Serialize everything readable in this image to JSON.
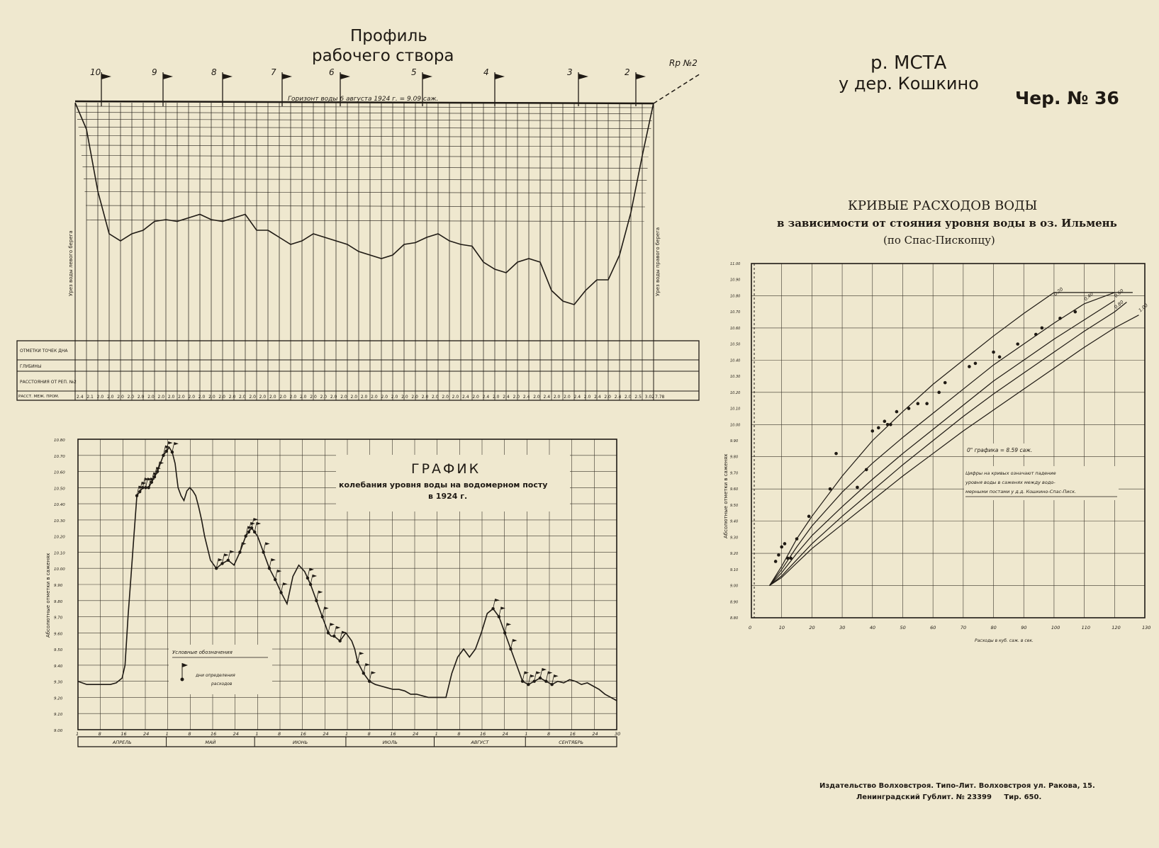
{
  "sheet": {
    "river": "р. МСТА",
    "place": "у дер. Кошкино",
    "drawing_no": "Чер. № 36",
    "imprint_line1": "Издательство Волховстроя. Типо-Лит. Волховстроя ул. Ракова, 15.",
    "imprint_line2": "Ленинградский Гублит. № 23399     Тир. 650."
  },
  "colors": {
    "paper": "#efe8cf",
    "ink": "#1f1a14",
    "grid": "#3a342b"
  },
  "chart_data": [
    {
      "type": "area",
      "title_line1": "Профиль",
      "title_line2": "рабочего створа",
      "water_level_note": "Горизонт воды 6 августа 1924 г. = 9.09 саж.",
      "left_bank_label": "Урез воды левого берега",
      "right_bank_label": "Урез воды правого берега",
      "benchmark_label": "Rр №2",
      "verticals": [
        "10",
        "9",
        "8",
        "7",
        "6",
        "5",
        "4",
        "3",
        "2"
      ],
      "table_row_labels": [
        "ОТМЕТКИ ТОЧЕК ДНА",
        "ГЛУБИНЫ",
        "РАССТОЯНИЯ ОТ РЕП. №2",
        "РАССТ. МЕЖ. ПРОМ."
      ],
      "spacing_values": [
        "2.4",
        "2.1",
        "2.0",
        "2.0",
        "2.0",
        "2.0",
        "2.0",
        "2.0",
        "2.0",
        "2.0",
        "2.0",
        "2.0",
        "2.0",
        "2.0",
        "2.0",
        "2.0",
        "2.0",
        "2.0",
        "2.0",
        "2.0",
        "2.0",
        "2.0",
        "2.0",
        "2.0",
        "2.0",
        "2.0",
        "2.0",
        "2.0",
        "2.0",
        "2.0",
        "2.0",
        "2.0",
        "2.0",
        "2.0",
        "2.0",
        "2.0",
        "2.0",
        "2.0",
        "2.4",
        "2.0",
        "2.4",
        "2.0",
        "2.4",
        "2.0",
        "2.4",
        "2.0",
        "2.4",
        "2.0",
        "2.0",
        "2.4",
        "2.0",
        "2.4",
        "2.0",
        "2.4",
        "2.0",
        "2.5",
        "3.02",
        "7.78"
      ],
      "bed_depth_relative": [
        0,
        0.15,
        0.5,
        0.74,
        0.78,
        0.74,
        0.72,
        0.67,
        0.66,
        0.67,
        0.65,
        0.63,
        0.66,
        0.67,
        0.65,
        0.63,
        0.72,
        0.72,
        0.76,
        0.8,
        0.78,
        0.74,
        0.76,
        0.78,
        0.8,
        0.84,
        0.86,
        0.88,
        0.86,
        0.8,
        0.79,
        0.76,
        0.74,
        0.78,
        0.8,
        0.81,
        0.9,
        0.94,
        0.96,
        0.9,
        0.88,
        0.9,
        1.06,
        1.12,
        1.14,
        1.06,
        1.0,
        1.0,
        0.86,
        0.62,
        0.3,
        0
      ]
    },
    {
      "type": "line",
      "title": "ГРАФИК",
      "subtitle_line1": "колебания уровня воды на водомерном посту",
      "subtitle_line2": "в 1924 г.",
      "ylabel": "Абсолютные отметки в саженях",
      "ylim": [
        9.0,
        10.8
      ],
      "y_ticks": [
        "10.80",
        "10.70",
        "10.60",
        "10.50",
        "10.40",
        "10.30",
        "10.20",
        "10.10",
        "10.00",
        "9.90",
        "9.80",
        "9.70",
        "9.60",
        "9.50",
        "9.40",
        "9.30",
        "9.20",
        "9.10",
        "9.00"
      ],
      "x_ticks": [
        "1",
        "8",
        "16",
        "24",
        "1",
        "8",
        "16",
        "24",
        "1",
        "8",
        "16",
        "24",
        "1",
        "8",
        "16",
        "24",
        "1",
        "8",
        "16",
        "24",
        "1",
        "8",
        "16",
        "24",
        "30"
      ],
      "months": [
        "АПРЕЛЬ",
        "МАЙ",
        "ИЮНЬ",
        "ИЮЛЬ",
        "АВГУСТ",
        "СЕНТЯБРЬ"
      ],
      "legend_title": "Условные обозначения",
      "legend_text_line1": "дни определения",
      "legend_text_line2": "расходов",
      "x": [
        1,
        4,
        8,
        12,
        14,
        16,
        17,
        18,
        19,
        20,
        21,
        23,
        25,
        28,
        30,
        32,
        33,
        34,
        35,
        36,
        37,
        38,
        39,
        40,
        41,
        42,
        43,
        44,
        46,
        48,
        50,
        52,
        54,
        56,
        58,
        60,
        62,
        63,
        64,
        65,
        66,
        68,
        70,
        72,
        74,
        76,
        78,
        80,
        82,
        83,
        84,
        85,
        86,
        87,
        88,
        90,
        92,
        94,
        95,
        96,
        98,
        100,
        102,
        104,
        106,
        108,
        110,
        112,
        114,
        116,
        118,
        120,
        122,
        124,
        126,
        128,
        130,
        132,
        134,
        136,
        138,
        140,
        142,
        144,
        146,
        148,
        150,
        152,
        154,
        156,
        158,
        160,
        162,
        164,
        166,
        168,
        170,
        172,
        174,
        176,
        178,
        180,
        182,
        184
      ],
      "values": [
        9.3,
        9.28,
        9.28,
        9.28,
        9.29,
        9.32,
        9.4,
        9.7,
        9.95,
        10.2,
        10.45,
        10.5,
        10.5,
        10.6,
        10.7,
        10.75,
        10.72,
        10.65,
        10.5,
        10.45,
        10.42,
        10.48,
        10.5,
        10.48,
        10.45,
        10.38,
        10.3,
        10.2,
        10.05,
        10.0,
        10.03,
        10.05,
        10.02,
        10.1,
        10.2,
        10.25,
        10.2,
        10.15,
        10.1,
        10.05,
        10.0,
        9.93,
        9.85,
        9.78,
        9.95,
        10.02,
        9.98,
        9.9,
        9.8,
        9.75,
        9.7,
        9.65,
        9.6,
        9.58,
        9.58,
        9.55,
        9.6,
        9.55,
        9.5,
        9.42,
        9.35,
        9.3,
        9.28,
        9.27,
        9.26,
        9.25,
        9.25,
        9.24,
        9.22,
        9.22,
        9.21,
        9.2,
        9.2,
        9.2,
        9.2,
        9.35,
        9.45,
        9.5,
        9.45,
        9.5,
        9.6,
        9.72,
        9.75,
        9.7,
        9.6,
        9.5,
        9.4,
        9.3,
        9.28,
        9.3,
        9.32,
        9.3,
        9.28,
        9.3,
        9.29,
        9.31,
        9.3,
        9.28,
        9.29,
        9.27,
        9.25,
        9.22,
        9.2,
        9.18
      ],
      "measurement_days": [
        21,
        22,
        23,
        24,
        25,
        26,
        27,
        28,
        30,
        31,
        33,
        48,
        50,
        52,
        56,
        58,
        59,
        60,
        61,
        64,
        66,
        68,
        70,
        79,
        80,
        82,
        84,
        86,
        88,
        90,
        96,
        98,
        100,
        142,
        144,
        146,
        148,
        152,
        154,
        156,
        158,
        160,
        162
      ]
    },
    {
      "type": "line",
      "title": "КРИВЫЕ РАСХОДОВ ВОДЫ",
      "subtitle_line1": "в зависимости от стояния уровня воды в оз. Ильмень",
      "subtitle_line2": "(по Спас-Пископцу)",
      "ylabel": "Абсолютные отметки в саженях",
      "xlabel": "Расходы в куб. саж. в сек.",
      "xlim": [
        0,
        130
      ],
      "ylim": [
        8.8,
        11.0
      ],
      "x_ticks": [
        "0",
        "10",
        "20",
        "30",
        "40",
        "50",
        "60",
        "70",
        "80",
        "90",
        "100",
        "110",
        "120",
        "130"
      ],
      "y_ticks": [
        "11.00",
        "10.90",
        "10.80",
        "10.70",
        "10.60",
        "10.50",
        "10.40",
        "10.30",
        "10.20",
        "10.10",
        "10.00",
        "9.90",
        "9.80",
        "9.70",
        "9.60",
        "9.50",
        "9.40",
        "9.30",
        "9.20",
        "9.10",
        "9.00",
        "8.90",
        "8.80"
      ],
      "zero_note": "0\" графика = 8.59 саж.",
      "note_line1": "Цифры на кривых означают падение",
      "note_line2": "уровня воды в саженях между водо-",
      "note_line3": "мерными постами у д.д. Кошкино-Спас-Писк.",
      "series": [
        {
          "name": "0.20",
          "x": [
            6,
            10,
            15,
            20,
            30,
            40,
            50,
            60,
            70,
            80,
            90,
            100,
            108,
            115,
            120,
            126
          ],
          "y": [
            9.0,
            9.12,
            9.29,
            9.43,
            9.68,
            9.9,
            10.08,
            10.25,
            10.4,
            10.55,
            10.69,
            10.82,
            10.92,
            11.0,
            11.05,
            11.12
          ]
        },
        {
          "name": "0.40",
          "x": [
            6,
            10,
            15,
            20,
            30,
            40,
            50,
            60,
            70,
            80,
            90,
            100,
            110,
            120
          ],
          "y": [
            9.0,
            9.1,
            9.24,
            9.37,
            9.58,
            9.76,
            9.92,
            10.07,
            10.22,
            10.37,
            10.5,
            10.63,
            10.75,
            10.85
          ]
        },
        {
          "name": "0.60",
          "x": [
            6,
            10,
            15,
            20,
            30,
            40,
            50,
            60,
            70,
            80,
            90,
            100,
            110,
            120
          ],
          "y": [
            9.0,
            9.08,
            9.2,
            9.31,
            9.49,
            9.66,
            9.82,
            9.97,
            10.12,
            10.27,
            10.4,
            10.53,
            10.65,
            10.77
          ]
        },
        {
          "name": "0.80",
          "x": [
            6,
            10,
            15,
            20,
            30,
            40,
            50,
            60,
            70,
            80,
            90,
            100,
            110,
            120,
            124
          ],
          "y": [
            9.0,
            9.06,
            9.16,
            9.26,
            9.43,
            9.59,
            9.75,
            9.9,
            10.05,
            10.19,
            10.32,
            10.45,
            10.58,
            10.7,
            10.76
          ]
        },
        {
          "name": "1.00",
          "x": [
            6,
            10,
            15,
            20,
            30,
            40,
            50,
            60,
            70,
            80,
            90,
            100,
            110,
            120,
            128
          ],
          "y": [
            9.0,
            9.05,
            9.14,
            9.23,
            9.38,
            9.53,
            9.68,
            9.82,
            9.96,
            10.09,
            10.22,
            10.35,
            10.48,
            10.6,
            10.68
          ]
        }
      ],
      "points": [
        [
          8,
          9.15
        ],
        [
          9,
          9.19
        ],
        [
          10,
          9.24
        ],
        [
          11,
          9.26
        ],
        [
          12,
          9.17
        ],
        [
          13,
          9.17
        ],
        [
          15,
          9.29
        ],
        [
          19,
          9.43
        ],
        [
          26,
          9.6
        ],
        [
          28,
          9.82
        ],
        [
          35,
          9.61
        ],
        [
          38,
          9.72
        ],
        [
          40,
          9.96
        ],
        [
          42,
          9.98
        ],
        [
          44,
          10.02
        ],
        [
          45,
          10.0
        ],
        [
          46,
          10.0
        ],
        [
          48,
          10.08
        ],
        [
          52,
          10.1
        ],
        [
          55,
          10.13
        ],
        [
          58,
          10.13
        ],
        [
          62,
          10.2
        ],
        [
          64,
          10.26
        ],
        [
          72,
          10.36
        ],
        [
          74,
          10.38
        ],
        [
          80,
          10.45
        ],
        [
          82,
          10.42
        ],
        [
          88,
          10.5
        ],
        [
          94,
          10.56
        ],
        [
          96,
          10.6
        ],
        [
          102,
          10.66
        ],
        [
          107,
          10.7
        ]
      ]
    }
  ]
}
